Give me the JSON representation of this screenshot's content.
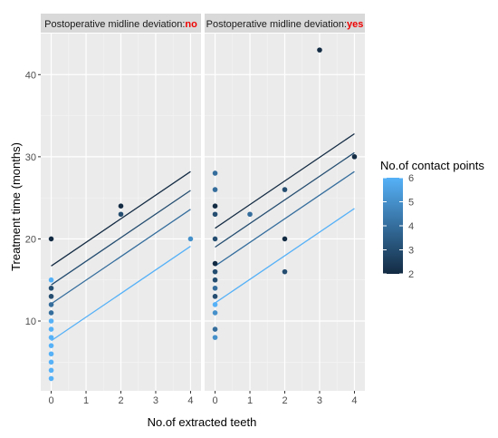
{
  "chart_data": {
    "type": "scatter",
    "xlabel": "No.of extracted teeth",
    "ylabel": "Treatment time (months)",
    "xlim": [
      -0.3,
      4.3
    ],
    "ylim": [
      1.5,
      45
    ],
    "x_ticks": [
      0,
      1,
      2,
      3,
      4
    ],
    "y_ticks": [
      10,
      20,
      30,
      40
    ],
    "grid": true,
    "legend": {
      "title": "No.of contact points",
      "position": "right",
      "range": [
        2,
        6
      ],
      "ticks": [
        2,
        3,
        4,
        5,
        6
      ],
      "low_color": "#132B43",
      "high_color": "#56B1F7"
    },
    "facets": [
      {
        "label_prefix": "Postoperative midline deviation:",
        "label_value": "no",
        "label_value_color": "#ee0000",
        "points": [
          {
            "x": 0,
            "y": 3,
            "contact": 6
          },
          {
            "x": 0,
            "y": 4,
            "contact": 6
          },
          {
            "x": 0,
            "y": 5,
            "contact": 6
          },
          {
            "x": 0,
            "y": 6,
            "contact": 6
          },
          {
            "x": 0,
            "y": 7,
            "contact": 6
          },
          {
            "x": 0,
            "y": 8,
            "contact": 6
          },
          {
            "x": 0,
            "y": 9,
            "contact": 6
          },
          {
            "x": 0,
            "y": 10,
            "contact": 6
          },
          {
            "x": 0,
            "y": 11,
            "contact": 4
          },
          {
            "x": 0,
            "y": 12,
            "contact": 4
          },
          {
            "x": 0,
            "y": 13,
            "contact": 3
          },
          {
            "x": 0,
            "y": 14,
            "contact": 3
          },
          {
            "x": 0,
            "y": 15,
            "contact": 6
          },
          {
            "x": 0,
            "y": 20,
            "contact": 2
          },
          {
            "x": 2,
            "y": 23,
            "contact": 3
          },
          {
            "x": 2,
            "y": 24,
            "contact": 2
          },
          {
            "x": 4,
            "y": 20,
            "contact": 5
          }
        ],
        "lines": [
          {
            "contact": 2,
            "y_at_0": 16.7,
            "y_at_4": 28.2
          },
          {
            "contact": 3,
            "y_at_0": 14.4,
            "y_at_4": 25.9
          },
          {
            "contact": 4,
            "y_at_0": 12.1,
            "y_at_4": 23.6
          },
          {
            "contact": 6,
            "y_at_0": 7.6,
            "y_at_4": 19.1
          }
        ]
      },
      {
        "label_prefix": "Postoperative midline deviation:",
        "label_value": "yes",
        "label_value_color": "#ee0000",
        "points": [
          {
            "x": 0,
            "y": 8,
            "contact": 5
          },
          {
            "x": 0,
            "y": 9,
            "contact": 4
          },
          {
            "x": 0,
            "y": 11,
            "contact": 5
          },
          {
            "x": 0,
            "y": 12,
            "contact": 6
          },
          {
            "x": 0,
            "y": 13,
            "contact": 3
          },
          {
            "x": 0,
            "y": 14,
            "contact": 4
          },
          {
            "x": 0,
            "y": 15,
            "contact": 3
          },
          {
            "x": 0,
            "y": 16,
            "contact": 3
          },
          {
            "x": 0,
            "y": 17,
            "contact": 2
          },
          {
            "x": 0,
            "y": 20,
            "contact": 3
          },
          {
            "x": 0,
            "y": 23,
            "contact": 3
          },
          {
            "x": 0,
            "y": 24,
            "contact": 2
          },
          {
            "x": 0,
            "y": 26,
            "contact": 4
          },
          {
            "x": 0,
            "y": 28,
            "contact": 4
          },
          {
            "x": 1,
            "y": 23,
            "contact": 4
          },
          {
            "x": 2,
            "y": 16,
            "contact": 3
          },
          {
            "x": 2,
            "y": 20,
            "contact": 2
          },
          {
            "x": 2,
            "y": 26,
            "contact": 3
          },
          {
            "x": 3,
            "y": 43,
            "contact": 2
          },
          {
            "x": 4,
            "y": 30,
            "contact": 2
          }
        ],
        "lines": [
          {
            "contact": 2,
            "y_at_0": 21.3,
            "y_at_4": 32.8
          },
          {
            "contact": 3,
            "y_at_0": 19.0,
            "y_at_4": 30.5
          },
          {
            "contact": 4,
            "y_at_0": 16.7,
            "y_at_4": 28.2
          },
          {
            "contact": 6,
            "y_at_0": 12.2,
            "y_at_4": 23.7
          }
        ]
      }
    ]
  }
}
